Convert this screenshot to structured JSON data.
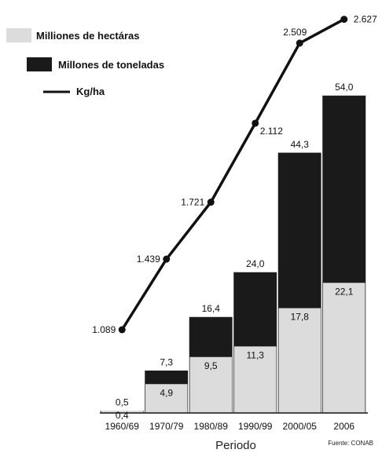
{
  "chart_data": {
    "type": "bar",
    "stacked": true,
    "categories": [
      "1960/69",
      "1970/79",
      "1980/89",
      "1990/99",
      "2000/05",
      "2006"
    ],
    "series": [
      {
        "name": "Milliones de hectáras",
        "values": [
          0.4,
          4.9,
          9.5,
          11.3,
          17.8,
          22.1
        ],
        "labels": [
          "0,4",
          "4,9",
          "9,5",
          "11,3",
          "17,8",
          "22,1"
        ],
        "color": "#dcdcdc"
      },
      {
        "name": "Millones de toneladas",
        "values": [
          0.5,
          7.3,
          16.4,
          24.0,
          44.3,
          54.0
        ],
        "labels": [
          "0,5",
          "7,3",
          "16,4",
          "24,0",
          "44,3",
          "54,0"
        ],
        "color": "#1a1a1a"
      }
    ],
    "line_series": {
      "name": "Kg/ha",
      "values": [
        1089,
        1439,
        1721,
        2112,
        2509,
        2627
      ],
      "labels": [
        "1.089",
        "1.439",
        "1.721",
        "2.112",
        "2.509",
        "2.627"
      ],
      "color": "#111111"
    },
    "xlabel": "Periodo",
    "source": "Fuente: CONAB",
    "legend_position": "top-left",
    "grid": false
  }
}
